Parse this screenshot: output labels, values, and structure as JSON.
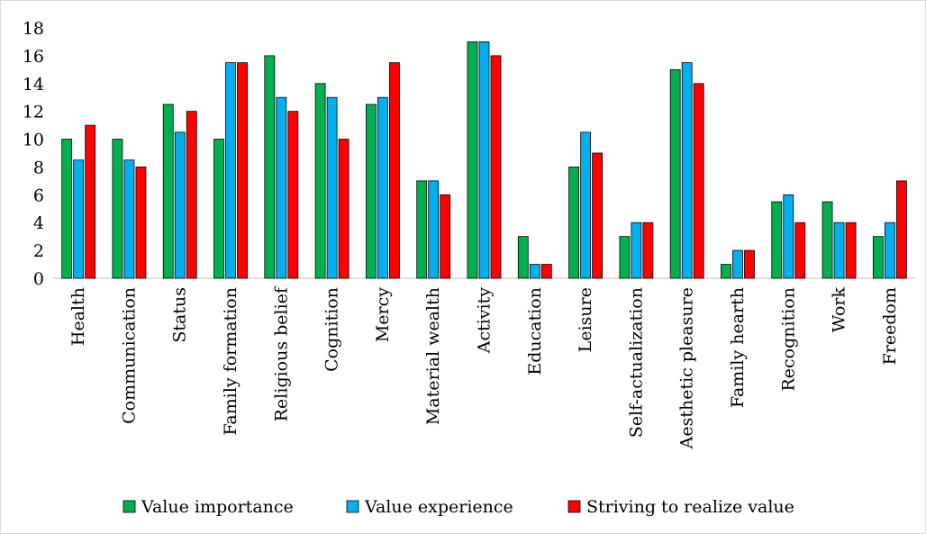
{
  "chart_data": {
    "type": "bar",
    "title": "",
    "xlabel": "",
    "ylabel": "",
    "ylim": [
      0,
      18
    ],
    "yticks": [
      0,
      2,
      4,
      6,
      8,
      10,
      12,
      14,
      16,
      18
    ],
    "grid": false,
    "legend_position": "bottom",
    "categories": [
      "Health",
      "Communication",
      "Status",
      "Family formation",
      "Religious belief",
      "Cognition",
      "Mercy",
      "Material wealth",
      "Activity",
      "Education",
      "Leisure",
      "Self-actualization",
      "Aesthetic pleasure",
      "Family hearth",
      "Recognition",
      "Work",
      "Freedom"
    ],
    "series": [
      {
        "name": "Value importance",
        "color": "#00b050",
        "values": [
          10,
          10,
          12.5,
          10,
          16,
          14,
          12.5,
          7,
          17,
          3,
          8,
          3,
          15,
          1,
          5.5,
          5.5,
          3
        ]
      },
      {
        "name": "Value experience",
        "color": "#00b0f0",
        "values": [
          8.5,
          8.5,
          10.5,
          15.5,
          13,
          13,
          13,
          7,
          17,
          1,
          10.5,
          4,
          15.5,
          2,
          6,
          4,
          4
        ]
      },
      {
        "name": "Striving to realize value",
        "color": "#ff0000",
        "values": [
          11,
          8,
          12,
          15.5,
          12,
          10,
          15.5,
          6,
          16,
          1,
          9,
          4,
          14,
          2,
          4,
          4,
          7
        ]
      }
    ]
  }
}
